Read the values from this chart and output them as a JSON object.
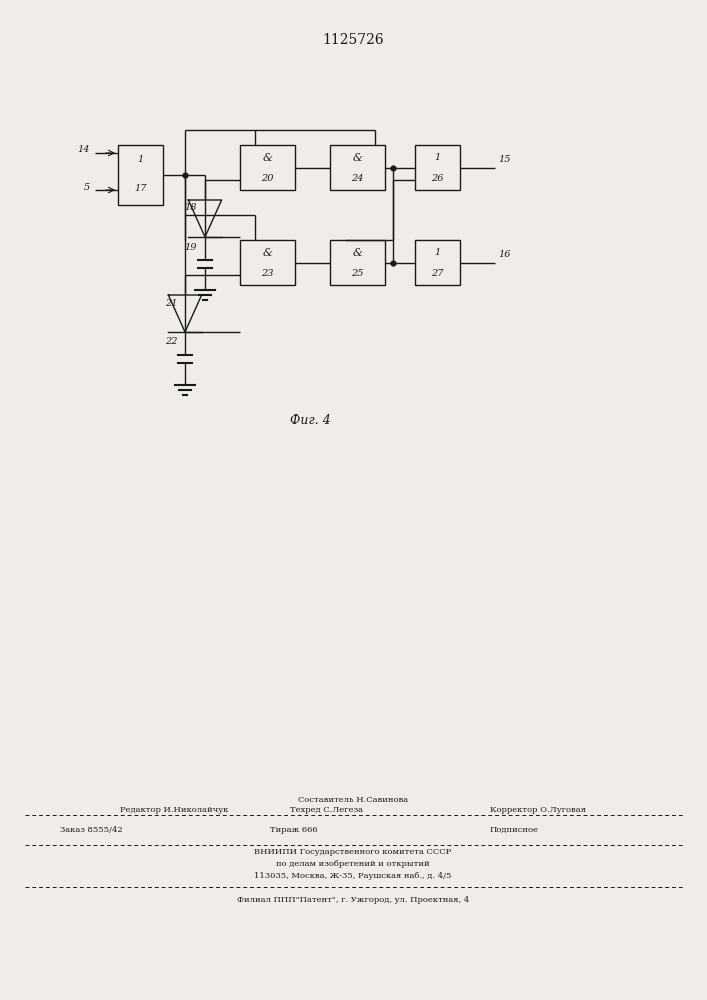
{
  "title": "1125726",
  "fig_label": "Фиг. 4",
  "background_color": "#f0ede8",
  "line_color": "#1a1a1a",
  "footer_line1_left": "Редактор И.Николайчук",
  "footer_line1_center": "Техред С.Легеза",
  "footer_line1_top": "Составитель Н.Савинова",
  "footer_line1_right": "Корректор О.Луговая",
  "footer_line2_left": "Заказ 8555/42",
  "footer_line2_center": "Тираж 666",
  "footer_line2_right": "Подписное",
  "footer_line3": "ВНИИПИ Государственного комитета СССР",
  "footer_line4": "по делам изобретений и открытий",
  "footer_line5": "113035, Москва, Ж-35, Раушская наб., д. 4/5",
  "footer_line6": "Филиал ППП\"Патент\", г. Ужгород, ул. Проектная, 4"
}
